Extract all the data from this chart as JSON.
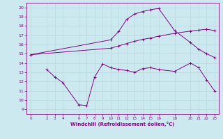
{
  "background_color": "#cce9f0",
  "line_color": "#880088",
  "grid_color": "#bbdddd",
  "xlabel": "Windchill (Refroidissement éolien,°C)",
  "xlim": [
    -0.5,
    23.5
  ],
  "ylim": [
    8.5,
    20.5
  ],
  "xticks": [
    0,
    2,
    3,
    4,
    6,
    7,
    8,
    9,
    10,
    11,
    12,
    13,
    14,
    15,
    16,
    18,
    20,
    21,
    22,
    23
  ],
  "yticks": [
    9,
    10,
    11,
    12,
    13,
    14,
    15,
    16,
    17,
    18,
    19,
    20
  ],
  "line1_x": [
    0,
    10,
    11,
    12,
    13,
    14,
    15,
    16,
    18,
    20,
    21,
    22,
    23
  ],
  "line1_y": [
    14.9,
    16.5,
    17.4,
    18.7,
    19.3,
    19.55,
    19.75,
    19.9,
    17.5,
    16.2,
    15.5,
    15.0,
    14.6
  ],
  "line2_x": [
    0,
    10,
    11,
    12,
    13,
    14,
    15,
    16,
    18,
    20,
    21,
    22,
    23
  ],
  "line2_y": [
    14.9,
    15.6,
    15.85,
    16.1,
    16.35,
    16.55,
    16.7,
    16.9,
    17.2,
    17.45,
    17.55,
    17.65,
    17.5
  ],
  "line3_x": [
    2,
    3,
    4,
    6,
    7,
    8,
    9,
    10,
    11,
    12,
    13,
    14,
    15,
    16,
    18,
    20,
    21,
    22,
    23
  ],
  "line3_y": [
    13.3,
    12.5,
    11.9,
    9.5,
    9.4,
    12.5,
    13.9,
    13.5,
    13.3,
    13.2,
    13.0,
    13.4,
    13.5,
    13.3,
    13.1,
    14.0,
    13.5,
    12.2,
    11.0
  ]
}
